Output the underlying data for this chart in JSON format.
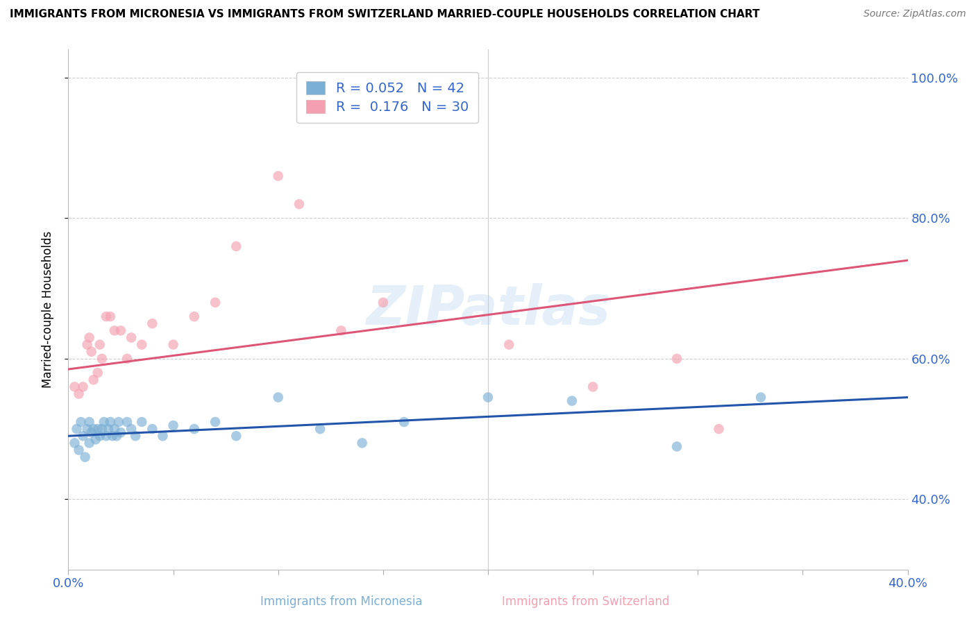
{
  "title": "IMMIGRANTS FROM MICRONESIA VS IMMIGRANTS FROM SWITZERLAND MARRIED-COUPLE HOUSEHOLDS CORRELATION CHART",
  "source": "Source: ZipAtlas.com",
  "xlabel_blue": "Immigrants from Micronesia",
  "xlabel_pink": "Immigrants from Switzerland",
  "ylabel": "Married-couple Households",
  "xlim": [
    0.0,
    0.4
  ],
  "ylim": [
    0.3,
    1.04
  ],
  "ytick_vals": [
    0.4,
    0.6,
    0.8,
    1.0
  ],
  "ytick_labels": [
    "40.0%",
    "60.0%",
    "80.0%",
    "100.0%"
  ],
  "r_blue": 0.052,
  "n_blue": 42,
  "r_pink": 0.176,
  "n_pink": 30,
  "blue_color": "#7BAFD4",
  "pink_color": "#F4A0B0",
  "trend_blue": "#2255AA",
  "trend_pink": "#DD5577",
  "legend_text_color": "#3366CC",
  "watermark": "ZIPatlas",
  "background_color": "#FFFFFF",
  "grid_color": "#CCCCCC",
  "blue_x": [
    0.003,
    0.004,
    0.005,
    0.006,
    0.007,
    0.008,
    0.009,
    0.01,
    0.01,
    0.011,
    0.012,
    0.013,
    0.014,
    0.015,
    0.016,
    0.017,
    0.018,
    0.019,
    0.02,
    0.021,
    0.022,
    0.023,
    0.024,
    0.025,
    0.028,
    0.03,
    0.032,
    0.035,
    0.04,
    0.045,
    0.05,
    0.06,
    0.07,
    0.08,
    0.1,
    0.12,
    0.14,
    0.16,
    0.2,
    0.24,
    0.29,
    0.33
  ],
  "blue_y": [
    0.48,
    0.5,
    0.47,
    0.51,
    0.49,
    0.46,
    0.5,
    0.51,
    0.48,
    0.495,
    0.5,
    0.485,
    0.5,
    0.49,
    0.5,
    0.51,
    0.49,
    0.5,
    0.51,
    0.49,
    0.5,
    0.49,
    0.51,
    0.495,
    0.51,
    0.5,
    0.49,
    0.51,
    0.5,
    0.49,
    0.505,
    0.5,
    0.51,
    0.49,
    0.545,
    0.5,
    0.48,
    0.51,
    0.545,
    0.54,
    0.475,
    0.545
  ],
  "pink_x": [
    0.003,
    0.005,
    0.007,
    0.009,
    0.01,
    0.011,
    0.012,
    0.014,
    0.015,
    0.016,
    0.018,
    0.02,
    0.022,
    0.025,
    0.028,
    0.03,
    0.035,
    0.04,
    0.05,
    0.06,
    0.07,
    0.08,
    0.1,
    0.11,
    0.13,
    0.15,
    0.21,
    0.25,
    0.29,
    0.31
  ],
  "pink_y": [
    0.56,
    0.55,
    0.56,
    0.62,
    0.63,
    0.61,
    0.57,
    0.58,
    0.62,
    0.6,
    0.66,
    0.66,
    0.64,
    0.64,
    0.6,
    0.63,
    0.62,
    0.65,
    0.62,
    0.66,
    0.68,
    0.76,
    0.86,
    0.82,
    0.64,
    0.68,
    0.62,
    0.56,
    0.6,
    0.5
  ],
  "trend_blue_x0": 0.0,
  "trend_blue_y0": 0.49,
  "trend_blue_x1": 0.4,
  "trend_blue_y1": 0.545,
  "trend_pink_x0": 0.0,
  "trend_pink_y0": 0.585,
  "trend_pink_x1": 0.4,
  "trend_pink_y1": 0.74
}
